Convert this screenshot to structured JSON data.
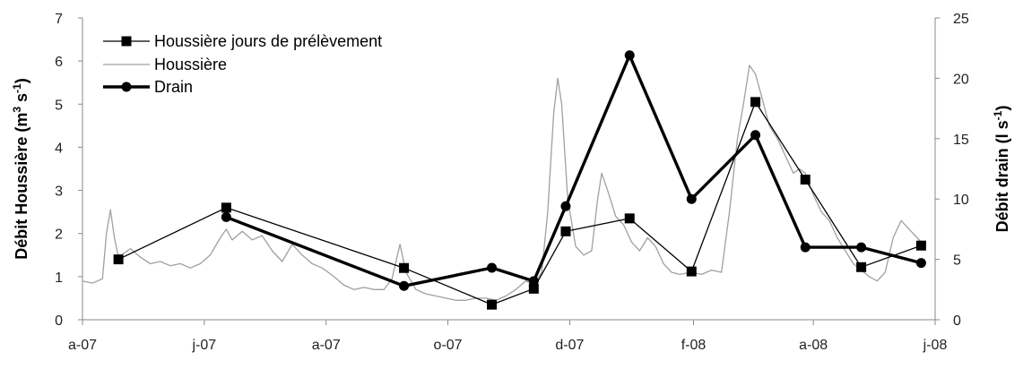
{
  "chart_data": {
    "type": "line",
    "xlabel": "",
    "ylabel_left_parts": [
      "Débit Houssière (m",
      "3",
      " s",
      "-1",
      ")"
    ],
    "ylabel_right_parts": [
      "Débit drain (l s",
      "-1",
      ")"
    ],
    "x_tick_labels": [
      "a-07",
      "j-07",
      "a-07",
      "o-07",
      "d-07",
      "f-08",
      "a-08",
      "j-08"
    ],
    "x_tick_dates": [
      "2007-04-01",
      "2007-06-01",
      "2007-08-01",
      "2007-10-01",
      "2007-12-01",
      "2008-02-01",
      "2008-04-01",
      "2008-06-01"
    ],
    "x_range": [
      "2007-04-01",
      "2008-06-01"
    ],
    "y_left": {
      "min": 0,
      "max": 7,
      "ticks": [
        0,
        1,
        2,
        3,
        4,
        5,
        6,
        7
      ]
    },
    "y_right": {
      "min": 0,
      "max": 25,
      "ticks": [
        0,
        5,
        10,
        15,
        20,
        25
      ]
    },
    "grid": false,
    "legend_position": "top-left",
    "series": [
      {
        "name": "Houssière jours de prélèvement",
        "axis": "left",
        "color": "#000000",
        "marker": "square",
        "points": [
          [
            "2007-04-19",
            1.4
          ],
          [
            "2007-06-12",
            2.6
          ],
          [
            "2007-09-09",
            1.2
          ],
          [
            "2007-10-23",
            0.35
          ],
          [
            "2007-11-13",
            0.72
          ],
          [
            "2007-11-29",
            2.05
          ],
          [
            "2007-12-31",
            2.35
          ],
          [
            "2008-01-31",
            1.12
          ],
          [
            "2008-03-03",
            5.05
          ],
          [
            "2008-03-28",
            3.25
          ],
          [
            "2008-04-25",
            1.22
          ],
          [
            "2008-05-25",
            1.72
          ]
        ]
      },
      {
        "name": "Houssière",
        "axis": "left",
        "color": "#a0a0a0",
        "marker": "none",
        "points": [
          [
            "2007-04-01",
            0.9
          ],
          [
            "2007-04-06",
            0.85
          ],
          [
            "2007-04-11",
            0.95
          ],
          [
            "2007-04-13",
            2.0
          ],
          [
            "2007-04-15",
            2.55
          ],
          [
            "2007-04-17",
            1.9
          ],
          [
            "2007-04-19",
            1.45
          ],
          [
            "2007-04-22",
            1.55
          ],
          [
            "2007-04-25",
            1.65
          ],
          [
            "2007-04-30",
            1.45
          ],
          [
            "2007-05-05",
            1.3
          ],
          [
            "2007-05-10",
            1.35
          ],
          [
            "2007-05-15",
            1.25
          ],
          [
            "2007-05-20",
            1.3
          ],
          [
            "2007-05-25",
            1.2
          ],
          [
            "2007-05-30",
            1.3
          ],
          [
            "2007-06-04",
            1.5
          ],
          [
            "2007-06-09",
            1.9
          ],
          [
            "2007-06-12",
            2.1
          ],
          [
            "2007-06-15",
            1.85
          ],
          [
            "2007-06-20",
            2.05
          ],
          [
            "2007-06-25",
            1.85
          ],
          [
            "2007-06-30",
            1.95
          ],
          [
            "2007-07-05",
            1.6
          ],
          [
            "2007-07-10",
            1.35
          ],
          [
            "2007-07-15",
            1.75
          ],
          [
            "2007-07-20",
            1.5
          ],
          [
            "2007-07-25",
            1.3
          ],
          [
            "2007-07-30",
            1.2
          ],
          [
            "2007-08-05",
            1.0
          ],
          [
            "2007-08-10",
            0.8
          ],
          [
            "2007-08-15",
            0.7
          ],
          [
            "2007-08-20",
            0.75
          ],
          [
            "2007-08-25",
            0.7
          ],
          [
            "2007-08-30",
            0.7
          ],
          [
            "2007-09-03",
            0.95
          ],
          [
            "2007-09-07",
            1.75
          ],
          [
            "2007-09-10",
            1.1
          ],
          [
            "2007-09-15",
            0.7
          ],
          [
            "2007-09-20",
            0.6
          ],
          [
            "2007-09-25",
            0.55
          ],
          [
            "2007-09-30",
            0.5
          ],
          [
            "2007-10-05",
            0.45
          ],
          [
            "2007-10-10",
            0.45
          ],
          [
            "2007-10-15",
            0.5
          ],
          [
            "2007-10-20",
            0.5
          ],
          [
            "2007-10-25",
            0.45
          ],
          [
            "2007-10-30",
            0.55
          ],
          [
            "2007-11-04",
            0.7
          ],
          [
            "2007-11-09",
            0.9
          ],
          [
            "2007-11-13",
            0.8
          ],
          [
            "2007-11-17",
            1.1
          ],
          [
            "2007-11-20",
            2.5
          ],
          [
            "2007-11-23",
            4.8
          ],
          [
            "2007-11-25",
            5.6
          ],
          [
            "2007-11-27",
            5.0
          ],
          [
            "2007-11-30",
            2.8
          ],
          [
            "2007-12-04",
            1.7
          ],
          [
            "2007-12-08",
            1.5
          ],
          [
            "2007-12-12",
            1.6
          ],
          [
            "2007-12-15",
            2.8
          ],
          [
            "2007-12-17",
            3.4
          ],
          [
            "2007-12-20",
            3.0
          ],
          [
            "2007-12-24",
            2.4
          ],
          [
            "2007-12-28",
            2.2
          ],
          [
            "2008-01-01",
            1.8
          ],
          [
            "2008-01-05",
            1.6
          ],
          [
            "2008-01-09",
            1.9
          ],
          [
            "2008-01-13",
            1.7
          ],
          [
            "2008-01-17",
            1.3
          ],
          [
            "2008-01-21",
            1.1
          ],
          [
            "2008-01-25",
            1.05
          ],
          [
            "2008-01-31",
            1.1
          ],
          [
            "2008-02-05",
            1.05
          ],
          [
            "2008-02-10",
            1.15
          ],
          [
            "2008-02-15",
            1.1
          ],
          [
            "2008-02-19",
            2.5
          ],
          [
            "2008-02-23",
            4.2
          ],
          [
            "2008-02-26",
            5.0
          ],
          [
            "2008-02-29",
            5.9
          ],
          [
            "2008-03-03",
            5.7
          ],
          [
            "2008-03-06",
            5.2
          ],
          [
            "2008-03-10",
            4.5
          ],
          [
            "2008-03-14",
            4.2
          ],
          [
            "2008-03-18",
            3.8
          ],
          [
            "2008-03-22",
            3.4
          ],
          [
            "2008-03-25",
            3.5
          ],
          [
            "2008-03-28",
            3.4
          ],
          [
            "2008-04-01",
            2.9
          ],
          [
            "2008-04-05",
            2.5
          ],
          [
            "2008-04-09",
            2.3
          ],
          [
            "2008-04-13",
            1.9
          ],
          [
            "2008-04-17",
            1.6
          ],
          [
            "2008-04-21",
            1.3
          ],
          [
            "2008-04-25",
            1.15
          ],
          [
            "2008-04-29",
            1.0
          ],
          [
            "2008-05-03",
            0.9
          ],
          [
            "2008-05-07",
            1.1
          ],
          [
            "2008-05-11",
            1.9
          ],
          [
            "2008-05-15",
            2.3
          ],
          [
            "2008-05-19",
            2.1
          ],
          [
            "2008-05-23",
            1.9
          ],
          [
            "2008-05-27",
            1.7
          ]
        ]
      },
      {
        "name": "Drain",
        "axis": "right",
        "color": "#000000",
        "marker": "circle",
        "points": [
          [
            "2007-06-12",
            8.5
          ],
          [
            "2007-09-09",
            2.8
          ],
          [
            "2007-10-23",
            4.3
          ],
          [
            "2007-11-13",
            3.2
          ],
          [
            "2007-11-29",
            9.4
          ],
          [
            "2007-12-31",
            21.9
          ],
          [
            "2008-01-31",
            10.0
          ],
          [
            "2008-03-03",
            15.3
          ],
          [
            "2008-03-28",
            6.0
          ],
          [
            "2008-04-25",
            6.0
          ],
          [
            "2008-05-25",
            4.7
          ]
        ]
      }
    ]
  }
}
